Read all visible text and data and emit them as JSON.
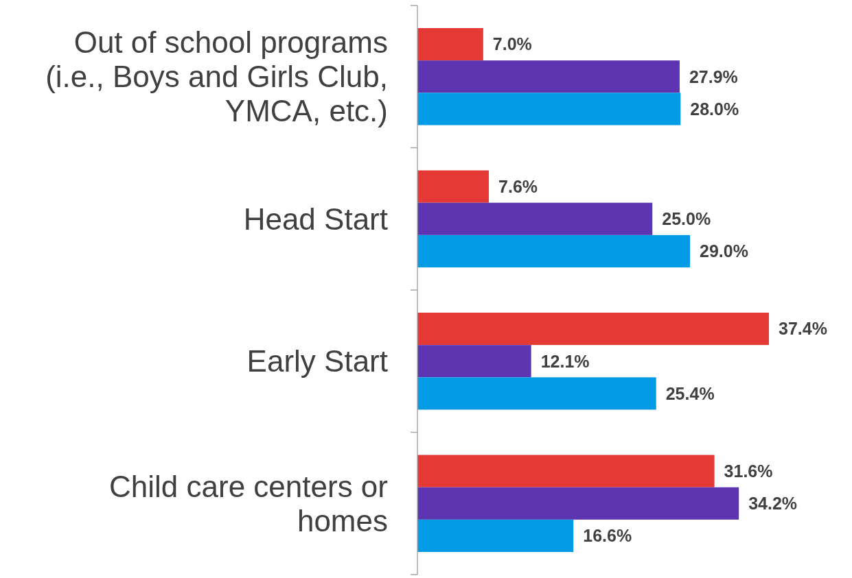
{
  "chart_data": {
    "type": "bar",
    "orientation": "horizontal",
    "categories": [
      "Out of school programs (i.e., Boys and Girls Club, YMCA, etc.)",
      "Head Start",
      "Early Start",
      "Child care centers or homes"
    ],
    "series": [
      {
        "color": "#e53935",
        "values": [
          7.0,
          7.6,
          37.4,
          31.6
        ],
        "value_labels": [
          "7.0%",
          "7.6%",
          "37.4%",
          "31.6%"
        ]
      },
      {
        "color": "#5e35b1",
        "values": [
          27.9,
          25.0,
          12.1,
          34.2
        ],
        "value_labels": [
          "27.9%",
          "25.0%",
          "12.1%",
          "34.2%"
        ]
      },
      {
        "color": "#039be5",
        "values": [
          28.0,
          29.0,
          25.4,
          16.6
        ],
        "value_labels": [
          "28.0%",
          "29.0%",
          "25.4%",
          "16.6%"
        ]
      }
    ],
    "xlim": [
      0,
      37.4
    ],
    "tick_labels": "y"
  }
}
